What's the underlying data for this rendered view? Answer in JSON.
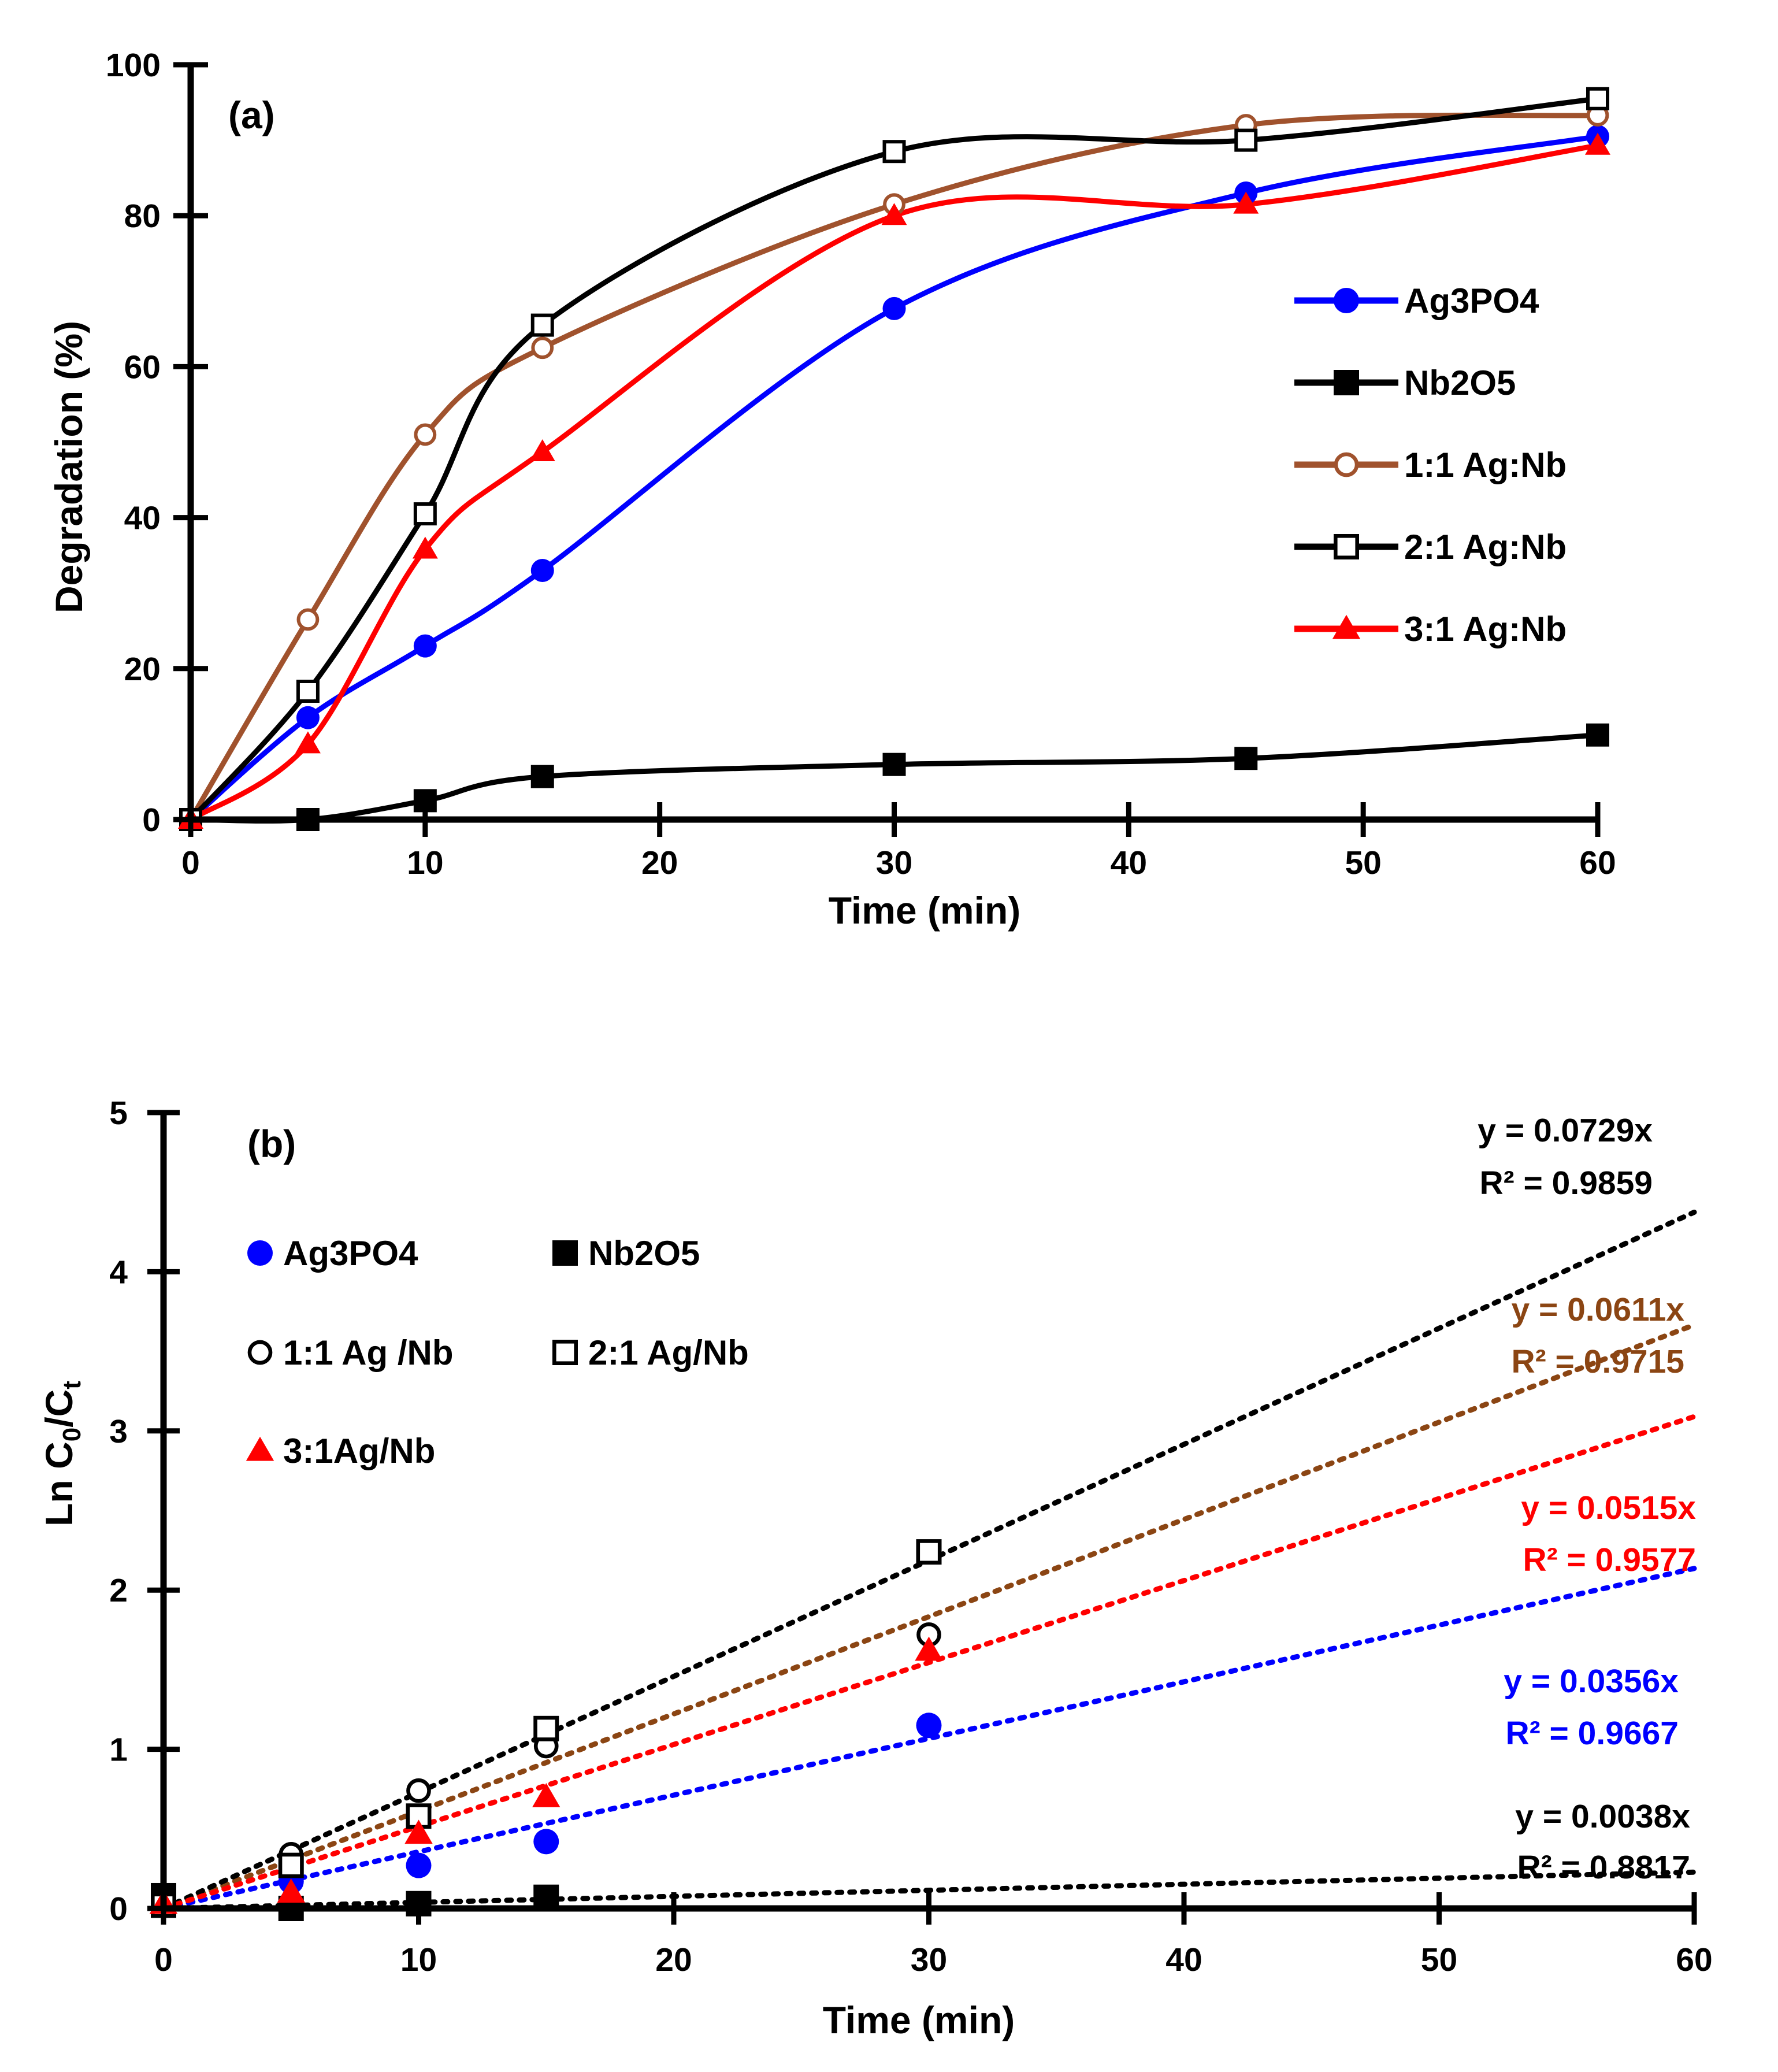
{
  "chart_data": [
    {
      "type": "line",
      "panel_label": "(a)",
      "xlabel": "Time (min)",
      "ylabel": "Degradation (%)",
      "xlim": [
        0,
        60
      ],
      "ylim": [
        0,
        100
      ],
      "xticks": [
        0,
        10,
        20,
        30,
        40,
        50,
        60
      ],
      "yticks": [
        0,
        20,
        40,
        60,
        80,
        100
      ],
      "x": [
        0,
        5,
        10,
        15,
        30,
        45,
        60
      ],
      "legend_position": "right",
      "series": [
        {
          "name": "Ag3PO4",
          "color": "#0000FF",
          "marker": "circle-filled",
          "values": [
            0,
            13.5,
            23,
            33,
            67.7,
            83,
            90.5
          ]
        },
        {
          "name": "Nb2O5",
          "color": "#000000",
          "marker": "square-filled",
          "values": [
            0,
            0,
            2.5,
            5.7,
            7.3,
            8.1,
            11.2
          ]
        },
        {
          "name": "1:1 Ag:Nb",
          "color": "#A0522D",
          "marker": "circle-open",
          "values": [
            0,
            26.5,
            51,
            62.5,
            81.5,
            92,
            93.3
          ]
        },
        {
          "name": "2:1 Ag:Nb",
          "color": "#000000",
          "marker": "square-open",
          "values": [
            0,
            17,
            40.5,
            65.5,
            88.5,
            90,
            95.5
          ]
        },
        {
          "name": "3:1 Ag:Nb",
          "color": "#FF0000",
          "marker": "triangle-filled",
          "values": [
            0,
            10,
            35.8,
            48.7,
            80,
            81.5,
            89.3
          ]
        }
      ]
    },
    {
      "type": "scatter",
      "panel_label": "(b)",
      "xlabel": "Time (min)",
      "ylabel_main": "Ln C",
      "ylabel_sub0": "0",
      "ylabel_slash": "/C",
      "ylabel_sub1": "t",
      "xlim": [
        0,
        60
      ],
      "ylim": [
        0,
        5
      ],
      "xticks": [
        0,
        10,
        20,
        30,
        40,
        50,
        60
      ],
      "yticks": [
        0,
        1,
        2,
        3,
        4,
        5
      ],
      "x": [
        0,
        5,
        10,
        15,
        30
      ],
      "legend_position": "top-left",
      "series": [
        {
          "name": "Ag3PO4",
          "color": "#0000FF",
          "marker": "circle-filled",
          "values": [
            0.05,
            0.17,
            0.27,
            0.42,
            1.15
          ],
          "slope": 0.0356,
          "eq": "y = 0.0356x",
          "r2": "R² = 0.9667"
        },
        {
          "name": "Nb2O5",
          "color": "#000000",
          "marker": "square-filled",
          "values": [
            0.08,
            0.0,
            0.03,
            0.07,
            null
          ],
          "slope": 0.0038,
          "eq": "y = 0.0038x",
          "r2": "R² = 0.8817"
        },
        {
          "name": "1:1 Ag /Nb",
          "color": "#000000",
          "trend_color": "#8B4513",
          "marker": "circle-open",
          "values": [
            0.03,
            0.34,
            0.74,
            1.02,
            1.72
          ],
          "slope": 0.0611,
          "eq": "y = 0.0611x",
          "r2": "R² = 0.9715"
        },
        {
          "name": "2:1 Ag/Nb",
          "color": "#000000",
          "trend_color": "#000000",
          "marker": "square-open",
          "values": [
            0.02,
            0.27,
            0.58,
            1.13,
            2.24
          ],
          "slope": 0.0729,
          "eq": "y = 0.0729x",
          "r2": "R² = 0.9859"
        },
        {
          "name": "3:1Ag/Nb",
          "color": "#FF0000",
          "marker": "triangle-filled",
          "values": [
            0.03,
            0.1,
            0.47,
            0.7,
            1.62
          ],
          "slope": 0.0515,
          "eq": "y = 0.0515x",
          "r2": "R² = 0.9577"
        }
      ]
    }
  ]
}
